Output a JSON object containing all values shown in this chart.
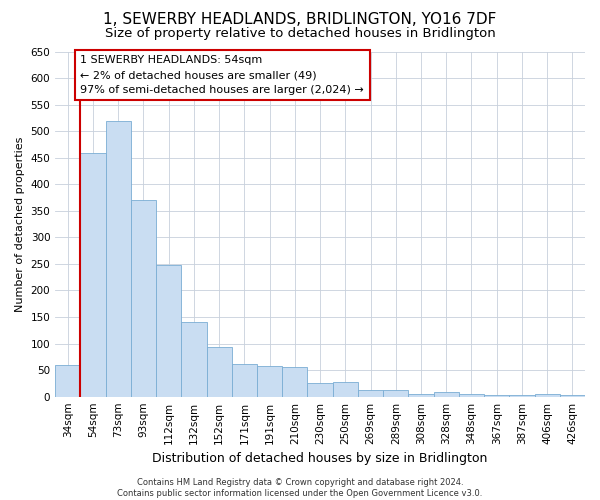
{
  "title": "1, SEWERBY HEADLANDS, BRIDLINGTON, YO16 7DF",
  "subtitle": "Size of property relative to detached houses in Bridlington",
  "xlabel": "Distribution of detached houses by size in Bridlington",
  "ylabel": "Number of detached properties",
  "categories": [
    "34sqm",
    "54sqm",
    "73sqm",
    "93sqm",
    "112sqm",
    "132sqm",
    "152sqm",
    "171sqm",
    "191sqm",
    "210sqm",
    "230sqm",
    "250sqm",
    "269sqm",
    "289sqm",
    "308sqm",
    "328sqm",
    "348sqm",
    "367sqm",
    "387sqm",
    "406sqm",
    "426sqm"
  ],
  "values": [
    60,
    458,
    520,
    370,
    248,
    140,
    93,
    62,
    58,
    55,
    25,
    27,
    12,
    12,
    5,
    8,
    5,
    4,
    3,
    5,
    3
  ],
  "bar_color": "#c9ddf2",
  "bar_edge_color": "#7aadd4",
  "highlight_bar_index": 1,
  "highlight_line_color": "#cc0000",
  "ylim": [
    0,
    650
  ],
  "yticks": [
    0,
    50,
    100,
    150,
    200,
    250,
    300,
    350,
    400,
    450,
    500,
    550,
    600,
    650
  ],
  "annotation_text": "1 SEWERBY HEADLANDS: 54sqm\n← 2% of detached houses are smaller (49)\n97% of semi-detached houses are larger (2,024) →",
  "annotation_box_facecolor": "#ffffff",
  "annotation_box_edgecolor": "#cc0000",
  "footer_line1": "Contains HM Land Registry data © Crown copyright and database right 2024.",
  "footer_line2": "Contains public sector information licensed under the Open Government Licence v3.0.",
  "bg_color": "#ffffff",
  "grid_color": "#c8d0dc",
  "title_fontsize": 11,
  "subtitle_fontsize": 9.5,
  "ylabel_fontsize": 8,
  "xlabel_fontsize": 9,
  "tick_fontsize": 7.5,
  "annotation_fontsize": 8,
  "footer_fontsize": 6
}
